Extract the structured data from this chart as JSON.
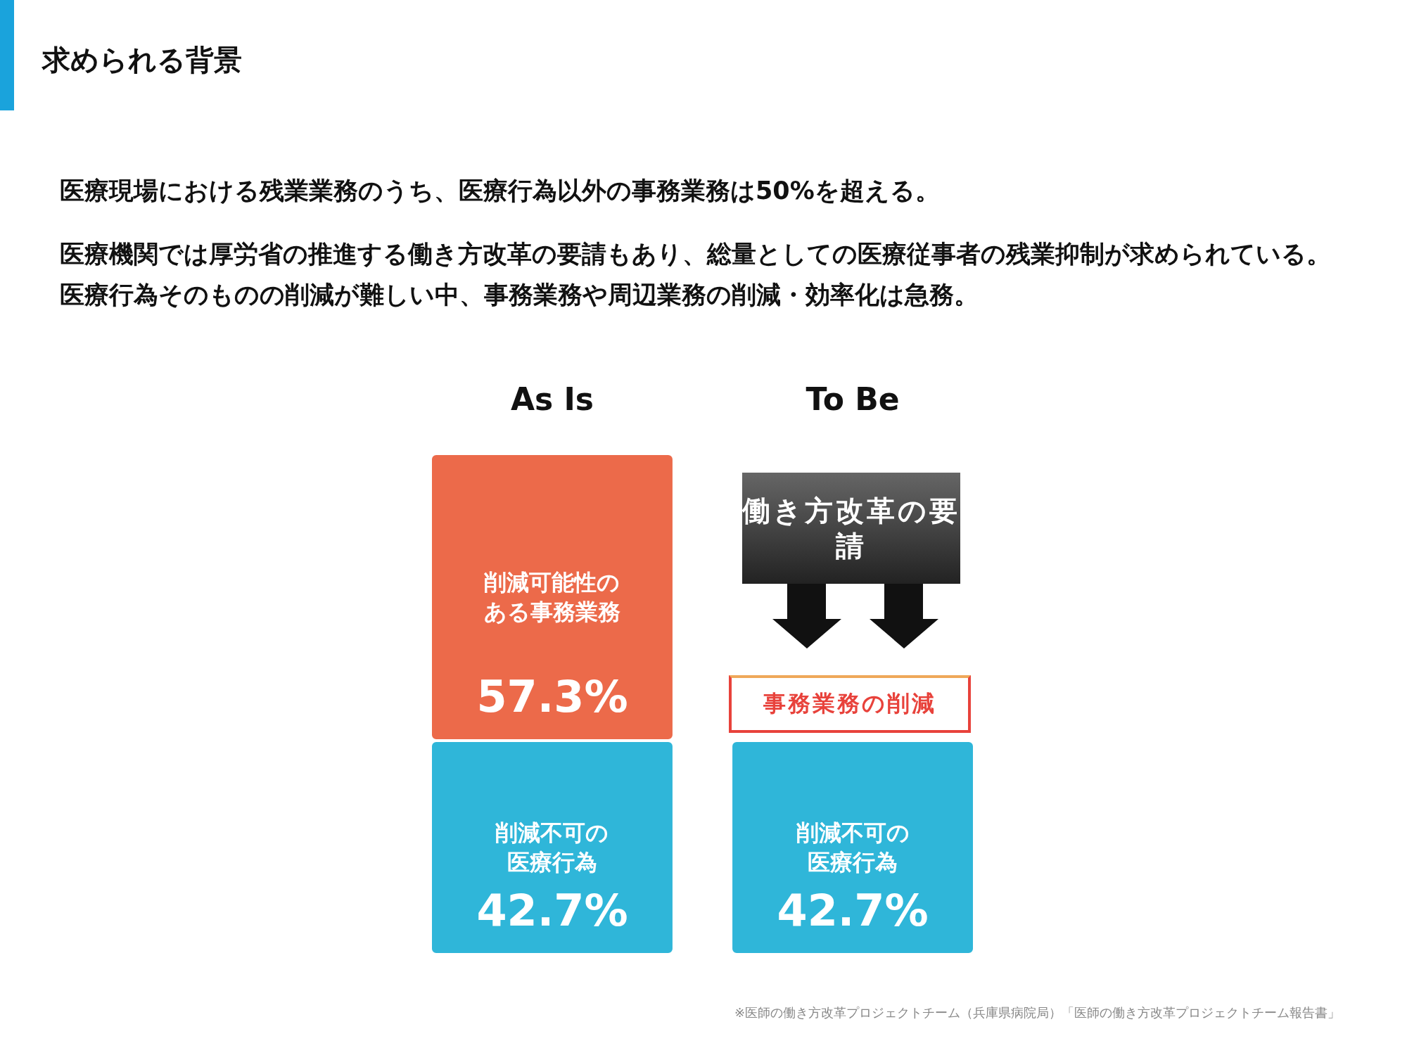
{
  "chart_data": {
    "type": "bar",
    "title": "求められる背景",
    "subtitle": "医療現場における残業業務のうち、医療行為以外の事務業務は50%を超える。",
    "categories": [
      "As Is",
      "To Be"
    ],
    "stacked": true,
    "legend": false,
    "series": [
      {
        "name": "削減不可の医療行為",
        "color": "#2fb6d9",
        "values": [
          42.7,
          42.7
        ],
        "value_labels": [
          "42.7%",
          "42.7%"
        ]
      },
      {
        "name": "削減可能性のある事務業務",
        "color": "#ec6a4a",
        "values": [
          57.3,
          null
        ],
        "value_labels": [
          "57.3%",
          null
        ]
      }
    ],
    "annotations": [
      "医療機関では厚労省の推進する働き方改革の要請もあり、総量としての医療従事者の残業抑制が求められている。医療行為そのものの削減が難しい中、事務業務や周辺業務の削減・効率化は急務。",
      "働き方改革の要請",
      "事務業務の削減",
      "※医師の働き方改革プロジェクトチーム（兵庫県病院局）「医師の働き方改革プロジェクトチーム報告書」"
    ]
  }
}
